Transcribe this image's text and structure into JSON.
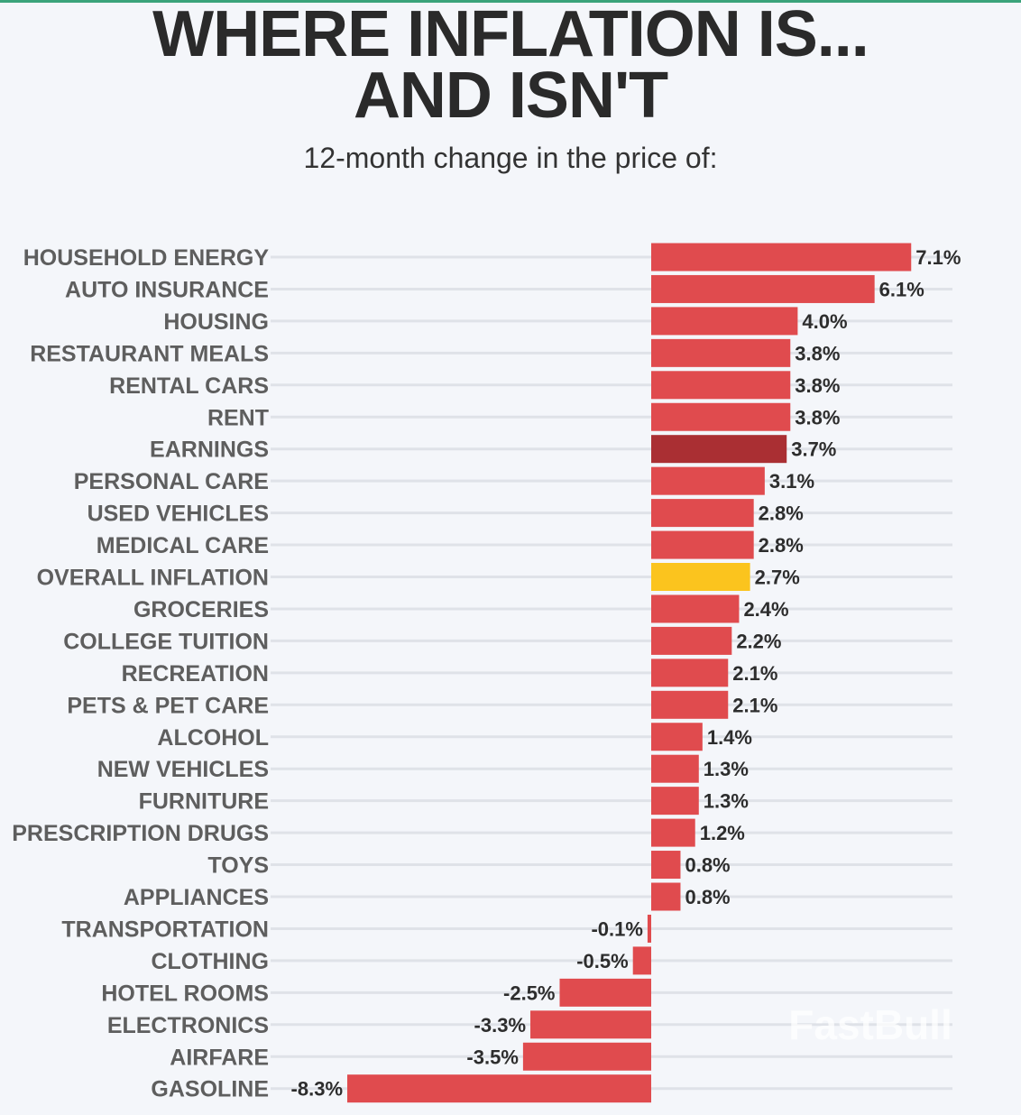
{
  "title_line1": "WHERE INFLATION IS...",
  "title_line2": "AND ISN'T",
  "subtitle": "12-month change in the price of:",
  "watermark": "FastBull",
  "colors": {
    "bar": "#e04b4e",
    "highlight_earnings": "#aa2f33",
    "highlight_overall": "#fbc41e",
    "grid": "#dfe2e8",
    "background": "#f4f6fa"
  },
  "chart_data": {
    "type": "bar",
    "orientation": "horizontal",
    "title": "WHERE INFLATION IS... AND ISN'T",
    "subtitle": "12-month change in the price of:",
    "unit": "%",
    "categories": [
      "HOUSEHOLD ENERGY",
      "AUTO INSURANCE",
      "HOUSING",
      "RESTAURANT MEALS",
      "RENTAL CARS",
      "RENT",
      "EARNINGS",
      "PERSONAL CARE",
      "USED VEHICLES",
      "MEDICAL CARE",
      "OVERALL INFLATION",
      "GROCERIES",
      "COLLEGE TUITION",
      "RECREATION",
      "PETS & PET CARE",
      "ALCOHOL",
      "NEW VEHICLES",
      "FURNITURE",
      "PRESCRIPTION DRUGS",
      "TOYS",
      "APPLIANCES",
      "TRANSPORTATION",
      "CLOTHING",
      "HOTEL ROOMS",
      "ELECTRONICS",
      "AIRFARE",
      "GASOLINE"
    ],
    "values": [
      7.1,
      6.1,
      4.0,
      3.8,
      3.8,
      3.8,
      3.7,
      3.1,
      2.8,
      2.8,
      2.7,
      2.4,
      2.2,
      2.1,
      2.1,
      1.4,
      1.3,
      1.3,
      1.2,
      0.8,
      0.8,
      -0.1,
      -0.5,
      -2.5,
      -3.3,
      -3.5,
      -8.3
    ],
    "value_labels": [
      "7.1%",
      "6.1%",
      "4.0%",
      "3.8%",
      "3.8%",
      "3.8%",
      "3.7%",
      "3.1%",
      "2.8%",
      "2.8%",
      "2.7%",
      "2.4%",
      "2.2%",
      "2.1%",
      "2.1%",
      "1.4%",
      "1.3%",
      "1.3%",
      "1.2%",
      "0.8%",
      "0.8%",
      "-0.1%",
      "-0.5%",
      "-2.5%",
      "-3.3%",
      "-3.5%",
      "-8.3%"
    ],
    "highlights": {
      "EARNINGS": "highlight_earnings",
      "OVERALL INFLATION": "highlight_overall"
    },
    "xlim": [
      -8.3,
      7.1
    ],
    "grid": true,
    "legend": "none"
  }
}
